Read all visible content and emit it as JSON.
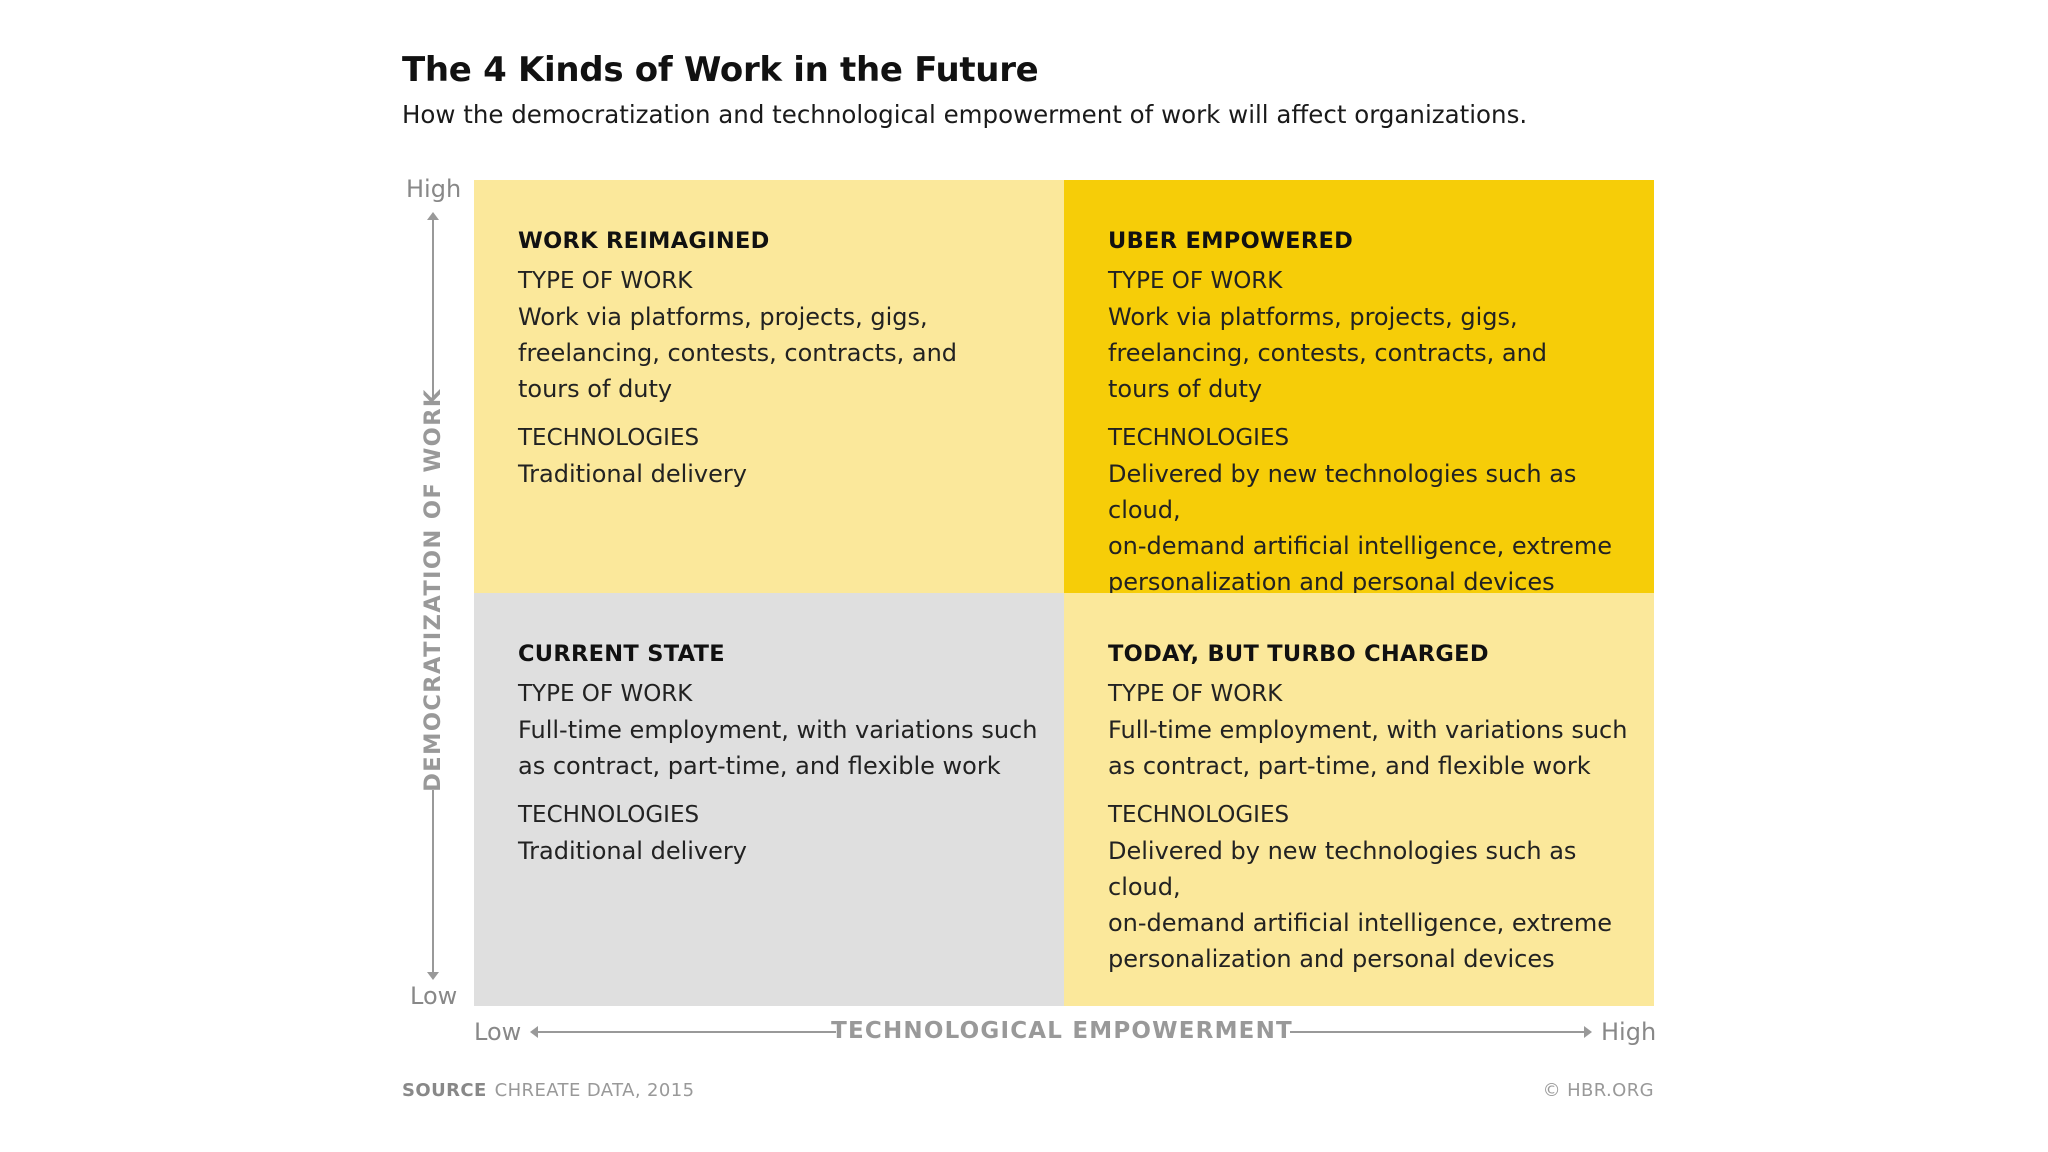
{
  "title": "The 4 Kinds of Work in the Future",
  "subtitle": "How the democratization and technological empowerment of work will affect organizations.",
  "y_axis": {
    "label": "DEMOCRATIZATION OF WORK",
    "high": "High",
    "low": "Low"
  },
  "x_axis": {
    "label": "TECHNOLOGICAL EMPOWERMENT",
    "low": "Low",
    "high": "High"
  },
  "quadrants": {
    "top_left": {
      "name": "WORK REIMAGINED",
      "type_label": "TYPE OF WORK",
      "type_text": [
        "Work via platforms, projects, gigs,",
        "freelancing, contests, contracts, and",
        "tours of duty"
      ],
      "tech_label": "TECHNOLOGIES",
      "tech_text": [
        "Traditional delivery"
      ],
      "color": "#fbe89b"
    },
    "top_right": {
      "name": "UBER EMPOWERED",
      "type_label": "TYPE OF WORK",
      "type_text": [
        "Work via platforms, projects, gigs,",
        "freelancing, contests, contracts, and",
        "tours of duty"
      ],
      "tech_label": "TECHNOLOGIES",
      "tech_text": [
        "Delivered by new technologies such as cloud,",
        "on-demand artificial intelligence, extreme",
        "personalization and personal devices"
      ],
      "color": "#f6cd08"
    },
    "bottom_left": {
      "name": "CURRENT STATE",
      "type_label": "TYPE OF WORK",
      "type_text": [
        "Full-time employment, with variations such",
        "as contract, part-time, and flexible work"
      ],
      "tech_label": "TECHNOLOGIES",
      "tech_text": [
        "Traditional delivery"
      ],
      "color": "#dfdfdf"
    },
    "bottom_right": {
      "name": "TODAY, BUT TURBO CHARGED",
      "type_label": "TYPE OF WORK",
      "type_text": [
        "Full-time employment, with variations such",
        "as contract, part-time, and flexible work"
      ],
      "tech_label": "TECHNOLOGIES",
      "tech_text": [
        "Delivered by new technologies such as cloud,",
        "on-demand artificial intelligence, extreme",
        "personalization and personal devices"
      ],
      "color": "#fbe89b"
    }
  },
  "source": {
    "label": "SOURCE",
    "text": "CHREATE DATA, 2015"
  },
  "copyright": "© HBR.ORG"
}
